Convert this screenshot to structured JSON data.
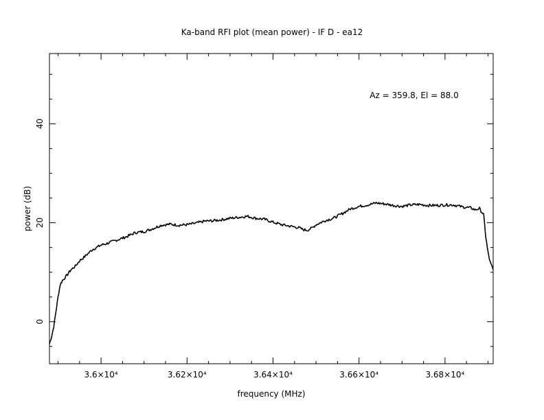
{
  "chart_data": {
    "type": "line",
    "title": "Ka-band RFI plot (mean power) - IF D - ea12",
    "xlabel": "frequency (MHz)",
    "ylabel": "power (dB)",
    "annotation": "Az = 359.8, El = 88.0",
    "xlim": [
      35880,
      36912
    ],
    "ylim": [
      -8.5,
      54.2
    ],
    "x_ticks": [
      36000,
      36200,
      36400,
      36600,
      36800
    ],
    "x_tick_labels": [
      "3.6×10⁴",
      "3.62×10⁴",
      "3.64×10⁴",
      "3.66×10⁴",
      "3.68×10⁴"
    ],
    "y_ticks": [
      0,
      20,
      40
    ],
    "y_tick_labels": [
      "0",
      "20",
      "40"
    ],
    "grid": false,
    "series": [
      {
        "color": "#000000",
        "x": [
          35880,
          35885,
          35890,
          35895,
          35900,
          35905,
          35910,
          35920,
          35930,
          35940,
          35950,
          35960,
          35970,
          35980,
          35990,
          36000,
          36010,
          36020,
          36040,
          36060,
          36080,
          36100,
          36120,
          36140,
          36160,
          36180,
          36200,
          36220,
          36240,
          36260,
          36280,
          36300,
          36320,
          36340,
          36360,
          36380,
          36400,
          36420,
          36440,
          36460,
          36470,
          36480,
          36490,
          36500,
          36520,
          36540,
          36560,
          36580,
          36600,
          36620,
          36640,
          36660,
          36680,
          36700,
          36720,
          36740,
          36760,
          36780,
          36800,
          36820,
          36840,
          36860,
          36870,
          36880,
          36885,
          36890,
          36895,
          36900,
          36905,
          36912
        ],
        "y": [
          -4.5,
          -3.0,
          -1.0,
          2.0,
          5.0,
          7.5,
          8.3,
          9.3,
          10.5,
          11.2,
          12.3,
          13.0,
          13.8,
          14.6,
          15.0,
          15.5,
          15.7,
          16.0,
          16.6,
          17.2,
          18.0,
          18.2,
          18.8,
          19.5,
          19.7,
          19.5,
          19.6,
          19.9,
          20.3,
          20.4,
          20.6,
          20.9,
          21.1,
          21.3,
          20.9,
          20.7,
          20.1,
          19.6,
          19.3,
          19.0,
          18.6,
          18.5,
          18.9,
          19.6,
          20.4,
          20.9,
          21.8,
          22.8,
          23.3,
          23.6,
          24.0,
          23.8,
          23.5,
          23.3,
          23.6,
          23.7,
          23.5,
          23.5,
          23.6,
          23.6,
          23.2,
          23.0,
          22.6,
          22.9,
          22.2,
          21.5,
          17.0,
          14.0,
          12.0,
          10.5
        ]
      }
    ]
  }
}
